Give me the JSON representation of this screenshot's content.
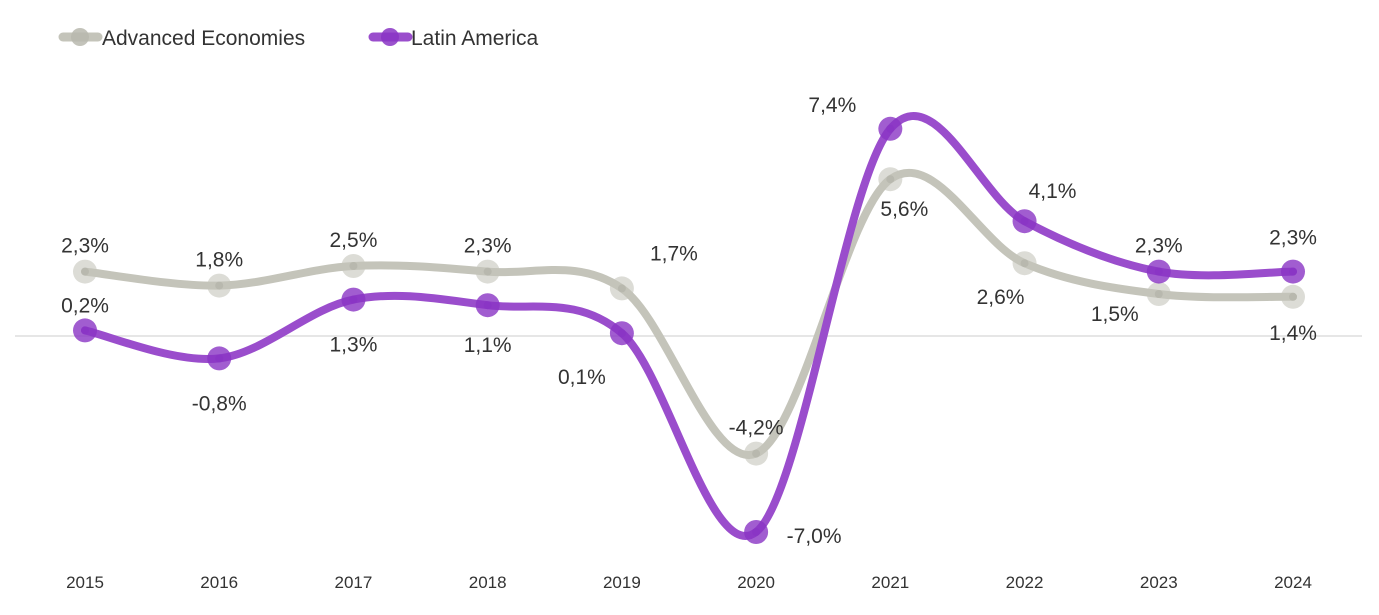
{
  "chart_data": {
    "type": "line",
    "title": "",
    "xlabel": "",
    "ylabel": "",
    "categories": [
      "2015",
      "2016",
      "2017",
      "2018",
      "2019",
      "2020",
      "2021",
      "2022",
      "2023",
      "2024"
    ],
    "legend_position": "top-left",
    "grid": false,
    "series": [
      {
        "name": "Advanced Economies",
        "color": "#c4c4ba",
        "values": [
          2.3,
          1.8,
          2.5,
          2.3,
          1.7,
          -4.2,
          5.6,
          2.6,
          1.5,
          1.4
        ],
        "labels": [
          "2,3%",
          "1,8%",
          "2,5%",
          "2,3%",
          "1,7%",
          "-4,2%",
          "5,6%",
          "2,6%",
          "1,5%",
          "1,4%"
        ]
      },
      {
        "name": "Latin America",
        "color": "#9a4dcc",
        "values": [
          0.2,
          -0.8,
          1.3,
          1.1,
          0.1,
          -7.0,
          7.4,
          4.1,
          2.3,
          2.3
        ],
        "labels": [
          "0,2%",
          "-0,8%",
          "1,3%",
          "1,1%",
          "0,1%",
          "-7,0%",
          "7,4%",
          "4,1%",
          "2,3%",
          "2,3%"
        ]
      }
    ]
  }
}
